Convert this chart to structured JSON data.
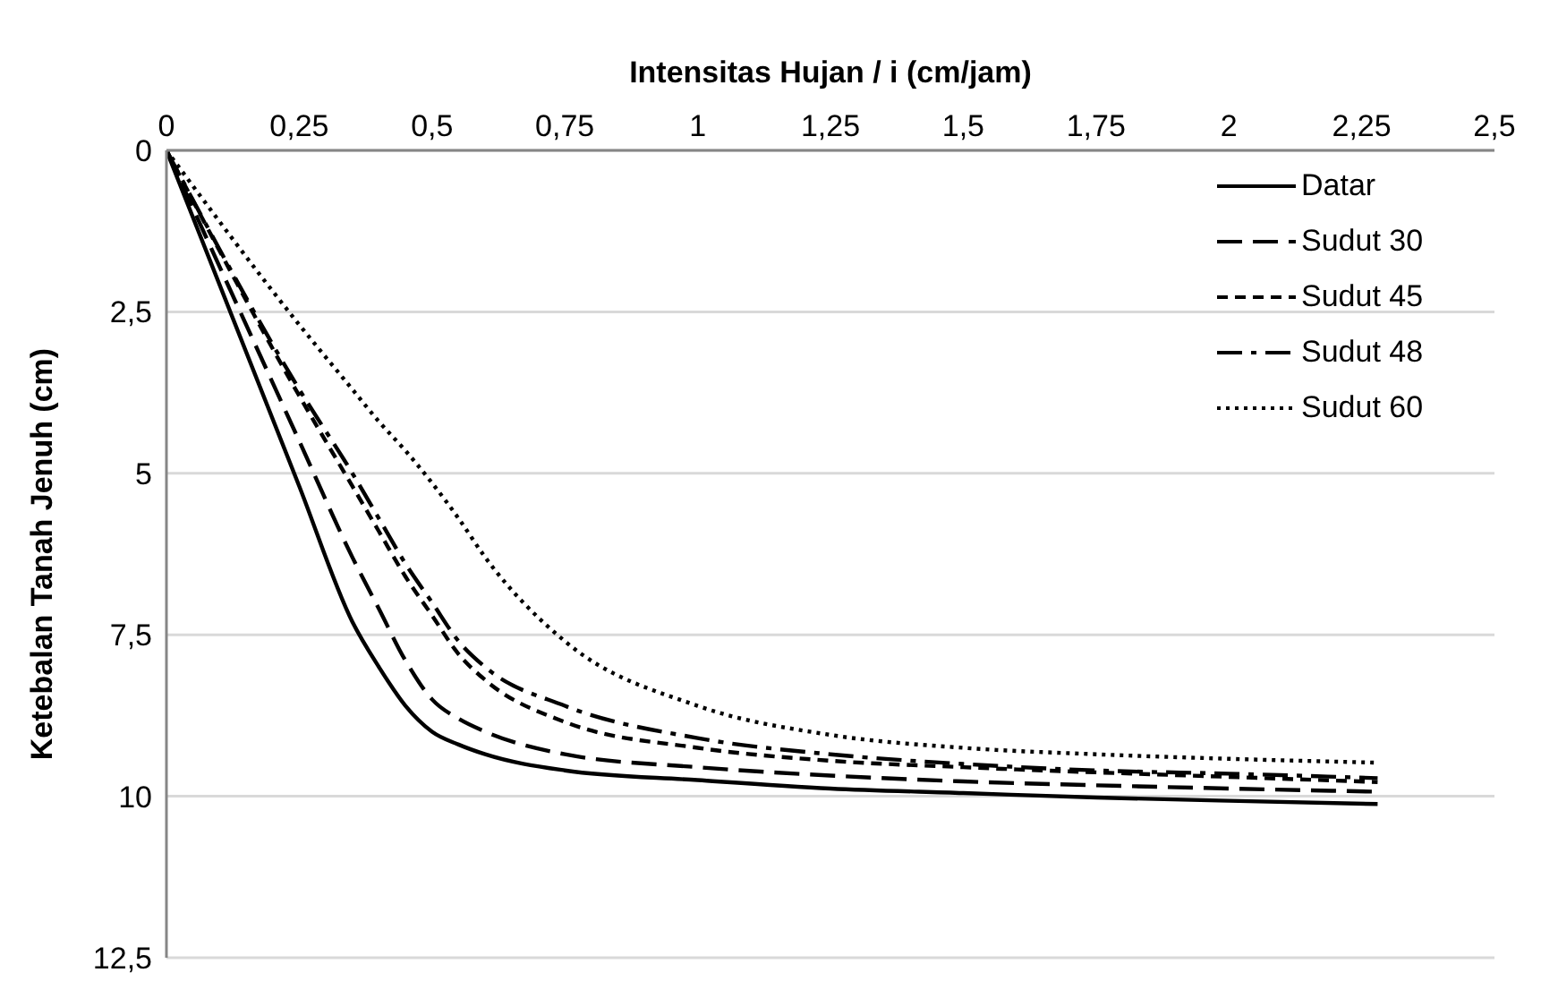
{
  "chart_data": {
    "type": "line",
    "xlabel": "Intensitas Hujan / i (cm/jam)",
    "ylabel": "Ketebalan Tanah Jenuh (cm)",
    "x": [
      0,
      0.25,
      0.35,
      0.4,
      0.45,
      0.5,
      0.55,
      0.6,
      0.75,
      1,
      1.25,
      1.5,
      1.75,
      2,
      2.28
    ],
    "series": [
      {
        "name": "Datar",
        "color": "#000000",
        "line_style": "solid",
        "values": [
          0,
          5.2,
          7.3,
          8.0,
          8.6,
          9.0,
          9.2,
          9.35,
          9.6,
          9.75,
          9.88,
          9.95,
          10.02,
          10.07,
          10.12
        ]
      },
      {
        "name": "Sudut 30",
        "color": "#000000",
        "line_style": "longdash",
        "values": [
          0,
          4.5,
          6.3,
          7.1,
          7.9,
          8.5,
          8.8,
          9.0,
          9.35,
          9.55,
          9.68,
          9.77,
          9.83,
          9.88,
          9.93
        ]
      },
      {
        "name": "Sudut 45",
        "color": "#000000",
        "line_style": "dashed",
        "values": [
          0,
          3.8,
          5.2,
          5.9,
          6.6,
          7.2,
          7.8,
          8.2,
          8.85,
          9.25,
          9.45,
          9.55,
          9.63,
          9.7,
          9.78
        ]
      },
      {
        "name": "Sudut 48",
        "color": "#000000",
        "line_style": "dashdot",
        "values": [
          0,
          3.7,
          5.0,
          5.7,
          6.4,
          7.0,
          7.6,
          8.0,
          8.6,
          9.1,
          9.35,
          9.5,
          9.6,
          9.65,
          9.72
        ]
      },
      {
        "name": "Sudut 60",
        "color": "#000000",
        "line_style": "dotted",
        "values": [
          0,
          2.7,
          3.7,
          4.2,
          4.65,
          5.15,
          5.7,
          6.3,
          7.6,
          8.6,
          9.05,
          9.25,
          9.35,
          9.42,
          9.48
        ]
      }
    ],
    "xlim": [
      0,
      2.5
    ],
    "xticks": [
      0,
      {
        "value": 0.25,
        "label": "0,25"
      },
      {
        "value": 0.5,
        "label": "0,5"
      },
      {
        "value": 0.75,
        "label": "0,75"
      },
      1,
      {
        "value": 1.25,
        "label": "1,25"
      },
      {
        "value": 1.5,
        "label": "1,5"
      },
      {
        "value": 1.75,
        "label": "1,75"
      },
      2,
      {
        "value": 2.25,
        "label": "2,25"
      },
      {
        "value": 2.5,
        "label": "2,5"
      }
    ],
    "ylim": [
      12.5,
      0
    ],
    "yticks": [
      0,
      {
        "value": 2.5,
        "label": "2,5"
      },
      5,
      {
        "value": 7.5,
        "label": "7,5"
      },
      10,
      {
        "value": 12.5,
        "label": "12,5"
      }
    ],
    "grid": "y",
    "legend": "top right",
    "marker": "none"
  }
}
